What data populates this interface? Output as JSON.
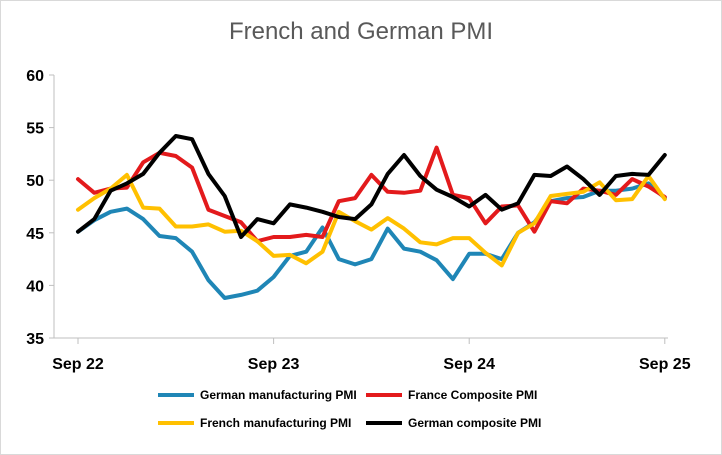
{
  "chart_data": {
    "type": "line",
    "title": "French and German PMI",
    "xlabel": "",
    "ylabel": "",
    "ylim": [
      35,
      60
    ],
    "yticks": [
      35,
      40,
      45,
      50,
      55,
      60
    ],
    "x_tick_labels": [
      "Sep 22",
      "Sep 23",
      "Sep 24",
      "Sep 25"
    ],
    "x": [
      "2022-09",
      "2022-10",
      "2022-11",
      "2022-12",
      "2023-01",
      "2023-02",
      "2023-03",
      "2023-04",
      "2023-05",
      "2023-06",
      "2023-07",
      "2023-08",
      "2023-09",
      "2023-10",
      "2023-11",
      "2023-12",
      "2024-01",
      "2024-02",
      "2024-03",
      "2024-04",
      "2024-05",
      "2024-06",
      "2024-07",
      "2024-08",
      "2024-09",
      "2024-10",
      "2024-11",
      "2024-12",
      "2025-01",
      "2025-02",
      "2025-03",
      "2025-04",
      "2025-05",
      "2025-06",
      "2025-07",
      "2025-08",
      "2025-09"
    ],
    "grid": false,
    "legend_position": "bottom",
    "series": [
      {
        "name": "German manufacturing PMI",
        "color": "#1f86b6",
        "values": [
          45.1,
          46.2,
          47.0,
          47.3,
          46.3,
          44.7,
          44.5,
          43.2,
          40.5,
          38.8,
          39.1,
          39.5,
          40.8,
          42.8,
          43.2,
          45.5,
          42.5,
          42.0,
          42.5,
          45.4,
          43.5,
          43.2,
          42.4,
          40.6,
          43.0,
          43.0,
          42.5,
          45.0,
          46.0,
          48.0,
          48.3,
          48.4,
          49.0,
          49.0,
          49.2,
          49.7,
          48.3
        ]
      },
      {
        "name": "France Composite PMI",
        "color": "#e31a1c",
        "values": [
          50.1,
          48.8,
          49.2,
          49.3,
          51.7,
          52.6,
          52.3,
          51.2,
          47.2,
          46.6,
          46.0,
          44.2,
          44.6,
          44.6,
          44.8,
          44.6,
          48.0,
          48.3,
          50.5,
          48.9,
          48.8,
          49.0,
          53.1,
          48.6,
          48.3,
          45.9,
          47.5,
          47.6,
          45.1,
          48.0,
          47.8,
          49.2,
          49.0,
          48.6,
          50.1,
          49.4,
          48.4
        ]
      },
      {
        "name": "French manufacturing PMI",
        "color": "#ffc000",
        "values": [
          47.2,
          48.3,
          49.2,
          50.5,
          47.4,
          47.3,
          45.6,
          45.6,
          45.8,
          45.1,
          45.2,
          44.2,
          42.8,
          42.9,
          42.1,
          43.2,
          47.0,
          46.1,
          45.3,
          46.4,
          45.4,
          44.1,
          43.9,
          44.5,
          44.5,
          43.1,
          41.9,
          45.0,
          45.9,
          48.5,
          48.7,
          48.9,
          49.8,
          48.1,
          48.2,
          50.4,
          48.2
        ]
      },
      {
        "name": "German composite PMI",
        "color": "#000000",
        "values": [
          45.1,
          46.3,
          49.0,
          49.7,
          50.6,
          52.6,
          54.2,
          53.9,
          50.6,
          48.5,
          44.6,
          46.3,
          45.9,
          47.7,
          47.4,
          47.0,
          46.5,
          46.3,
          47.7,
          50.6,
          52.4,
          50.4,
          49.1,
          48.4,
          47.5,
          48.6,
          47.2,
          47.8,
          50.5,
          50.4,
          51.3,
          50.1,
          48.6,
          50.4,
          50.6,
          50.5,
          52.4
        ]
      }
    ]
  }
}
